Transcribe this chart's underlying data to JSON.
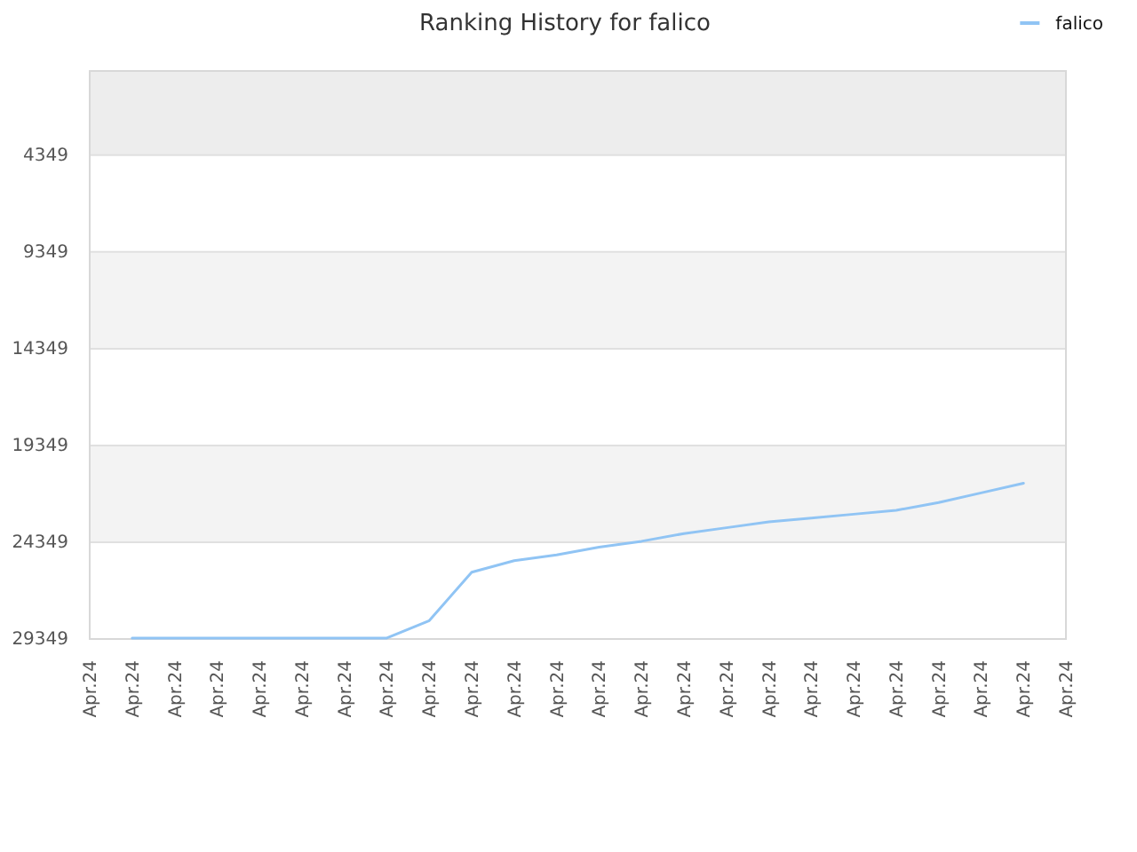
{
  "chart_data": {
    "type": "line",
    "title": "Ranking History for falico",
    "categories": [
      "Apr.24",
      "Apr.24",
      "Apr.24",
      "Apr.24",
      "Apr.24",
      "Apr.24",
      "Apr.24",
      "Apr.24",
      "Apr.24",
      "Apr.24",
      "Apr.24",
      "Apr.24",
      "Apr.24",
      "Apr.24",
      "Apr.24",
      "Apr.24",
      "Apr.24",
      "Apr.24",
      "Apr.24",
      "Apr.24",
      "Apr.24",
      "Apr.24",
      "Apr.24",
      "Apr.24"
    ],
    "series": [
      {
        "name": "falico",
        "color": "#90c4f4",
        "values": [
          null,
          29300,
          29300,
          29300,
          29300,
          29300,
          29300,
          29300,
          28400,
          25900,
          25300,
          25000,
          24600,
          24300,
          23900,
          23600,
          23300,
          23100,
          22900,
          22700,
          22300,
          21800,
          21300,
          null
        ]
      }
    ],
    "ylim": [
      29349,
      0
    ],
    "yticks": [
      4349,
      9349,
      14349,
      19349,
      24349,
      29349
    ],
    "bands": [
      {
        "axis": "y",
        "from": 0,
        "to": 4349,
        "color": "#ededed"
      },
      {
        "axis": "y",
        "from": 9349,
        "to": 14349,
        "color": "#f3f3f3"
      },
      {
        "axis": "y",
        "from": 19349,
        "to": 24349,
        "color": "#f3f3f3"
      }
    ],
    "grid": "y",
    "legend": "top right"
  }
}
